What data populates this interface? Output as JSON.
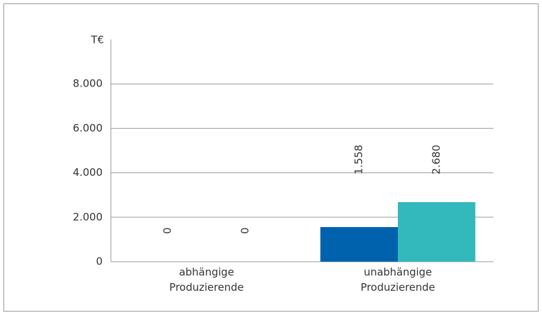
{
  "chart_data": {
    "type": "bar",
    "y_label": "T€",
    "categories": [
      "abhängige Produzierende",
      "unabhängige Produzierende"
    ],
    "series": [
      {
        "color": "#0062ad",
        "values": [
          0,
          1558
        ],
        "value_labels": [
          "0",
          "1.558"
        ]
      },
      {
        "color": "#33b8bc",
        "values": [
          0,
          2680
        ],
        "value_labels": [
          "0",
          "2.680"
        ]
      }
    ],
    "ylim": [
      0,
      10000
    ],
    "yticks": [
      0,
      {
        "value": 2000,
        "label": "2.000"
      },
      {
        "value": 4000,
        "label": "4.000"
      },
      {
        "value": 6000,
        "label": "6.000"
      },
      {
        "value": 8000,
        "label": "8.000"
      }
    ],
    "grid": true
  }
}
